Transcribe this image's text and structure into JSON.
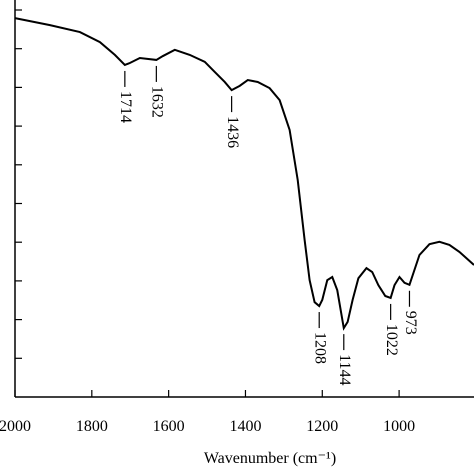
{
  "chart_data": {
    "type": "line",
    "xlabel": "Wavenumber (cm⁻¹)",
    "x": [
      2000,
      1909,
      1831,
      1779,
      1740,
      1714,
      1701,
      1675,
      1632,
      1615,
      1584,
      1545,
      1506,
      1480,
      1454,
      1436,
      1415,
      1394,
      1368,
      1337,
      1311,
      1285,
      1264,
      1246,
      1233,
      1220,
      1208,
      1200,
      1187,
      1174,
      1161,
      1144,
      1134,
      1121,
      1106,
      1085,
      1070,
      1054,
      1036,
      1022,
      1012,
      999,
      986,
      973,
      947,
      921,
      895,
      869,
      843,
      805
    ],
    "series": [
      {
        "color": "#000000",
        "values": [
          9.79,
          9.61,
          9.43,
          9.17,
          8.84,
          8.58,
          8.63,
          8.76,
          8.71,
          8.81,
          8.97,
          8.84,
          8.66,
          8.4,
          8.14,
          7.93,
          8.04,
          8.19,
          8.14,
          7.98,
          7.67,
          6.9,
          5.61,
          4.06,
          3.02,
          2.45,
          2.35,
          2.51,
          3.02,
          3.1,
          2.76,
          1.78,
          1.94,
          2.51,
          3.07,
          3.33,
          3.23,
          2.89,
          2.61,
          2.56,
          2.89,
          3.1,
          2.95,
          2.9,
          3.67,
          3.95,
          4.01,
          3.93,
          3.75,
          3.41
        ]
      }
    ],
    "peaks": [
      1714,
      1632,
      1436,
      1208,
      1144,
      1022,
      973
    ],
    "xlim": [
      2000,
      805
    ],
    "xticks": [
      2000,
      1800,
      1600,
      1400,
      1200,
      1000
    ],
    "ylim": [
      0,
      10
    ],
    "yticks": [
      1,
      2,
      3,
      4,
      5,
      6,
      7,
      8,
      9,
      10
    ]
  }
}
